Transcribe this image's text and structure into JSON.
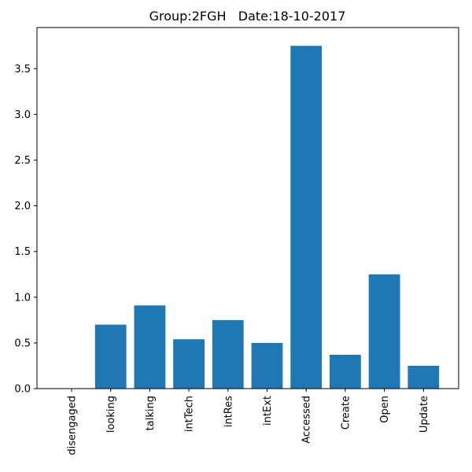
{
  "chart_data": {
    "type": "bar",
    "title": "Group:2FGH   Date:18-10-2017",
    "xlabel": "",
    "ylabel": "",
    "categories": [
      "disengaged",
      "looking",
      "talking",
      "intTech",
      "intRes",
      "intExt",
      "Accessed",
      "Create",
      "Open",
      "Update"
    ],
    "values": [
      0.0,
      0.7,
      0.91,
      0.54,
      0.75,
      0.5,
      3.75,
      0.37,
      1.25,
      0.25
    ],
    "ylim": [
      0,
      3.95
    ],
    "yticks": [
      0.0,
      0.5,
      1.0,
      1.5,
      2.0,
      2.5,
      3.0,
      3.5
    ],
    "ytick_labels": [
      "0.0",
      "0.5",
      "1.0",
      "1.5",
      "2.0",
      "2.5",
      "3.0",
      "3.5"
    ],
    "bar_color": "#1f77b4",
    "grid": false,
    "legend": "none"
  }
}
